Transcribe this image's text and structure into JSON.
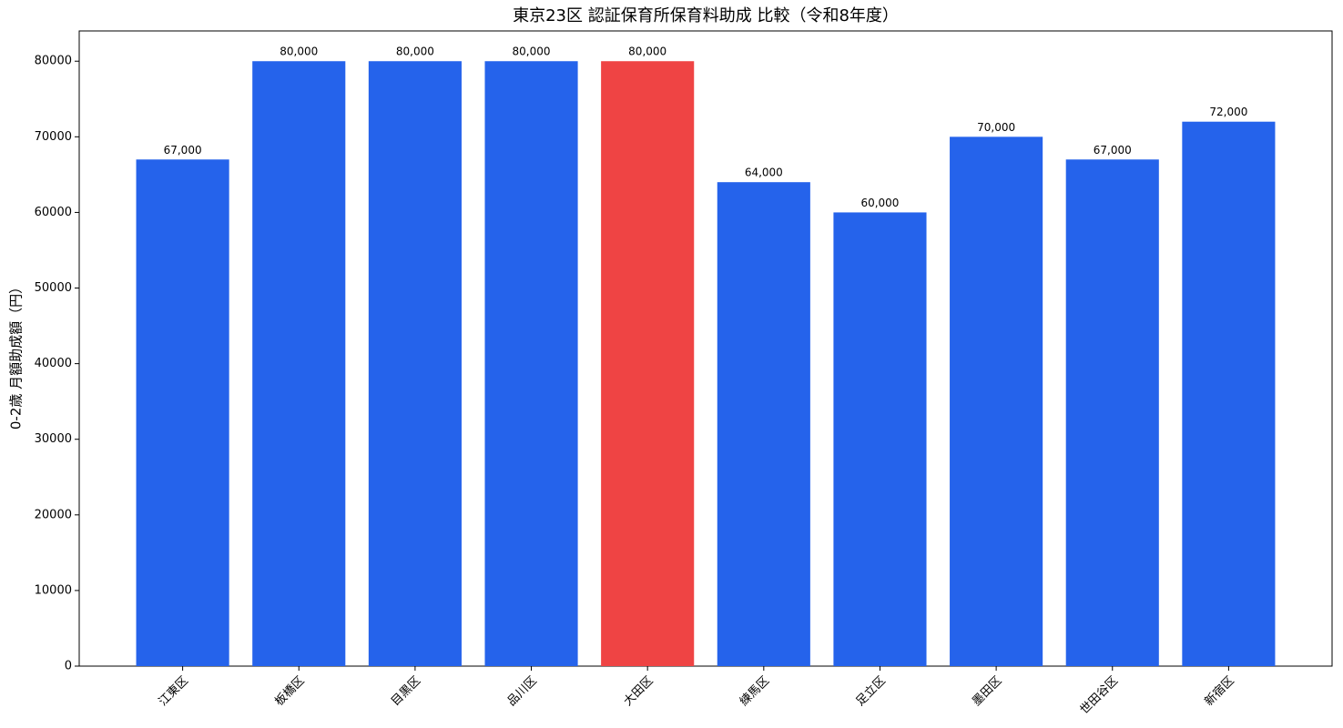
{
  "chart_data": {
    "type": "bar",
    "title": "東京23区 認証保育所保育料助成 比較（令和8年度）",
    "ylabel": "0-2歳 月額助成額（円）",
    "categories": [
      "江東区",
      "板橋区",
      "目黒区",
      "品川区",
      "大田区",
      "練馬区",
      "足立区",
      "墨田区",
      "世田谷区",
      "新宿区"
    ],
    "values": [
      67000,
      80000,
      80000,
      80000,
      80000,
      64000,
      60000,
      70000,
      67000,
      72000
    ],
    "value_labels": [
      "67,000",
      "80,000",
      "80,000",
      "80,000",
      "80,000",
      "64,000",
      "60,000",
      "70,000",
      "67,000",
      "72,000"
    ],
    "colors": [
      "#2563eb",
      "#2563eb",
      "#2563eb",
      "#2563eb",
      "#ef4444",
      "#2563eb",
      "#2563eb",
      "#2563eb",
      "#2563eb",
      "#2563eb"
    ],
    "ylim": [
      0,
      84000
    ],
    "yticks": [
      0,
      10000,
      20000,
      30000,
      40000,
      50000,
      60000,
      70000,
      80000
    ],
    "grid": false
  }
}
